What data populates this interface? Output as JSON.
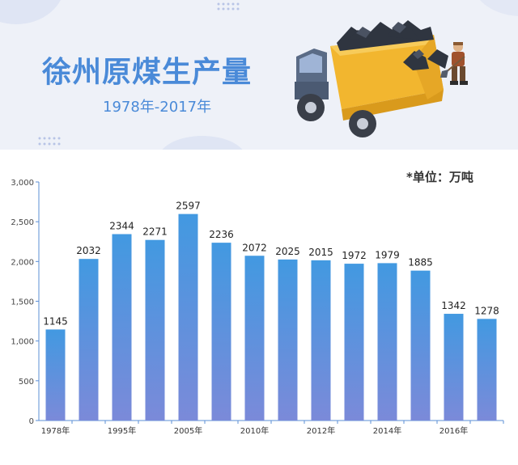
{
  "header": {
    "title": "徐州原煤生产量",
    "subtitle": "1978年-2017年"
  },
  "unit_note": "*单位：万吨",
  "illustration": {
    "truck": "dump-truck-with-coal-icon",
    "miner": "coal-miner-shoveling-icon"
  },
  "colors": {
    "title": "#4a8ad8",
    "bar_top": "#4299e1",
    "bar_bottom": "#7b8ad9",
    "axis": "#5b8fd6",
    "header_bg": "#eef1f8"
  },
  "chart_data": {
    "type": "bar",
    "categories": [
      "1978年",
      "",
      "1995年",
      "",
      "2005年",
      "",
      "2010年",
      "",
      "2012年",
      "",
      "2014年",
      "",
      "2016年",
      ""
    ],
    "values": [
      1145,
      2032,
      2344,
      2271,
      2597,
      2236,
      2072,
      2025,
      2015,
      1972,
      1979,
      1885,
      1342,
      1278
    ],
    "data_labels": [
      "1145",
      "2032",
      "2344",
      "2271",
      "2597",
      "2236",
      "2072",
      "2025",
      "2015",
      "1972",
      "1979",
      "1885",
      "1342",
      "1278"
    ],
    "y_ticks": [
      0,
      500,
      1000,
      1500,
      2000,
      2500,
      3000
    ],
    "y_tick_labels": [
      "0",
      "500",
      "1,000",
      "1,500",
      "2,000",
      "2,500",
      "3,000"
    ],
    "ylim": [
      0,
      3000
    ],
    "grid": false,
    "legend": "none"
  }
}
